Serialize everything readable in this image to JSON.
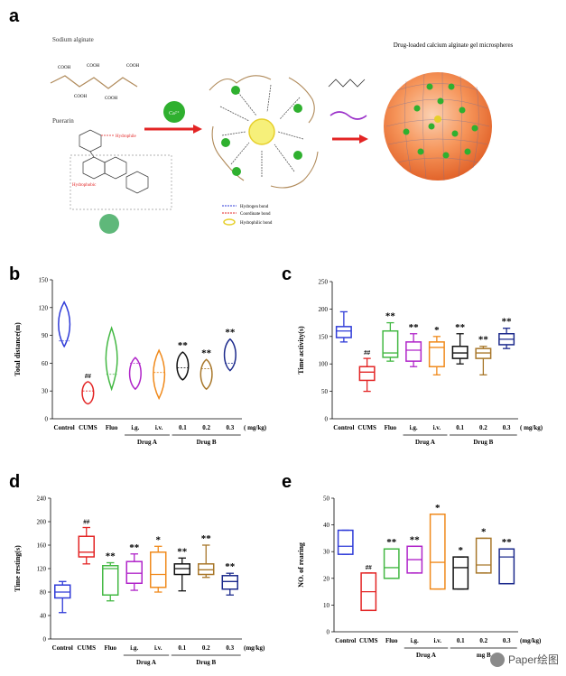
{
  "panel_a": {
    "letter": "a",
    "sodium_alginate": "Sodium alginate",
    "puerarin": "Puerarin",
    "hydrophile": "Hydrophile",
    "hydrophobic": "Hydrophobic",
    "calcium": "Ca²⁺",
    "cooh": "COOH",
    "microspheres_title": "Drug-loaded calcium alginate gel microspheres",
    "legend": [
      "Hydrogen bond",
      "Coordinate bond",
      "Hydrophilic bond"
    ]
  },
  "chart_data": [
    {
      "letter": "b",
      "type": "violin",
      "ylabel": "Total distance(m)",
      "ylim": [
        0,
        150
      ],
      "yticks": [
        0,
        30,
        60,
        90,
        120,
        150
      ],
      "categories": [
        "Control",
        "CUMS",
        "Fluo",
        "i.g.",
        "i.v.",
        "0.1",
        "0.2",
        "0.3"
      ],
      "colors": [
        "#2f3bd8",
        "#e32424",
        "#43b843",
        "#b024c9",
        "#f08a1c",
        "#111111",
        "#a8772a",
        "#1c2a8c"
      ],
      "series": [
        {
          "name": "Control",
          "min": 78,
          "max": 126,
          "median": 84,
          "sig": ""
        },
        {
          "name": "CUMS",
          "min": 16,
          "max": 40,
          "median": 30,
          "sig": "##"
        },
        {
          "name": "Fluo",
          "min": 32,
          "max": 98,
          "median": 48,
          "sig": ""
        },
        {
          "name": "i.g.",
          "min": 32,
          "max": 66,
          "median": 60,
          "sig": ""
        },
        {
          "name": "i.v.",
          "min": 22,
          "max": 74,
          "median": 50,
          "sig": ""
        },
        {
          "name": "0.1",
          "min": 42,
          "max": 72,
          "median": 55,
          "sig": "**"
        },
        {
          "name": "0.2",
          "min": 32,
          "max": 64,
          "median": 54,
          "sig": "**"
        },
        {
          "name": "0.3",
          "min": 52,
          "max": 86,
          "median": 60,
          "sig": "**"
        }
      ],
      "group_labels": {
        "A": "Drug A",
        "B": "Drug B"
      },
      "unit": "( mg/kg)"
    },
    {
      "letter": "c",
      "type": "box",
      "ylabel": "Time activity(s)",
      "ylim": [
        0,
        250
      ],
      "yticks": [
        0,
        50,
        100,
        150,
        200,
        250
      ],
      "categories": [
        "Control",
        "CUMS",
        "Fluo",
        "i.g.",
        "i.v.",
        "0.1",
        "0.2",
        "0.3"
      ],
      "colors": [
        "#2f3bd8",
        "#e32424",
        "#43b843",
        "#b024c9",
        "#f08a1c",
        "#111111",
        "#a8772a",
        "#1c2a8c"
      ],
      "series": [
        {
          "name": "Control",
          "wmin": 140,
          "q1": 148,
          "median": 160,
          "q3": 168,
          "wmax": 195,
          "sig": ""
        },
        {
          "name": "CUMS",
          "wmin": 50,
          "q1": 70,
          "median": 85,
          "q3": 95,
          "wmax": 110,
          "sig": "##"
        },
        {
          "name": "Fluo",
          "wmin": 105,
          "q1": 112,
          "median": 120,
          "q3": 160,
          "wmax": 175,
          "sig": "**"
        },
        {
          "name": "i.g.",
          "wmin": 95,
          "q1": 105,
          "median": 125,
          "q3": 140,
          "wmax": 155,
          "sig": "**"
        },
        {
          "name": "i.v.",
          "wmin": 80,
          "q1": 95,
          "median": 130,
          "q3": 140,
          "wmax": 150,
          "sig": "*"
        },
        {
          "name": "0.1",
          "wmin": 100,
          "q1": 110,
          "median": 120,
          "q3": 132,
          "wmax": 155,
          "sig": "**"
        },
        {
          "name": "0.2",
          "wmin": 80,
          "q1": 110,
          "median": 120,
          "q3": 128,
          "wmax": 132,
          "sig": "**"
        },
        {
          "name": "0.3",
          "wmin": 128,
          "q1": 135,
          "median": 145,
          "q3": 155,
          "wmax": 165,
          "sig": "**"
        }
      ],
      "group_labels": {
        "A": "Drug A",
        "B": "Drug B"
      },
      "unit": "( mg/kg)"
    },
    {
      "letter": "d",
      "type": "box",
      "ylabel": "Time resting(s)",
      "ylim": [
        0,
        240
      ],
      "yticks": [
        0,
        40,
        80,
        120,
        160,
        200,
        240
      ],
      "categories": [
        "Control",
        "CUMS",
        "Fluo",
        "i.g.",
        "i.v.",
        "0.1",
        "0.2",
        "0.3"
      ],
      "colors": [
        "#2f3bd8",
        "#e32424",
        "#43b843",
        "#b024c9",
        "#f08a1c",
        "#111111",
        "#a8772a",
        "#1c2a8c"
      ],
      "series": [
        {
          "name": "Control",
          "wmin": 45,
          "q1": 70,
          "median": 80,
          "q3": 92,
          "wmax": 98,
          "sig": ""
        },
        {
          "name": "CUMS",
          "wmin": 128,
          "q1": 140,
          "median": 148,
          "q3": 175,
          "wmax": 190,
          "sig": "##"
        },
        {
          "name": "Fluo",
          "wmin": 65,
          "q1": 75,
          "median": 120,
          "q3": 125,
          "wmax": 130,
          "sig": "**"
        },
        {
          "name": "i.g.",
          "wmin": 83,
          "q1": 95,
          "median": 112,
          "q3": 132,
          "wmax": 145,
          "sig": "**"
        },
        {
          "name": "i.v.",
          "wmin": 80,
          "q1": 88,
          "median": 110,
          "q3": 148,
          "wmax": 158,
          "sig": "*"
        },
        {
          "name": "0.1",
          "wmin": 82,
          "q1": 110,
          "median": 120,
          "q3": 128,
          "wmax": 138,
          "sig": "**"
        },
        {
          "name": "0.2",
          "wmin": 105,
          "q1": 110,
          "median": 118,
          "q3": 128,
          "wmax": 160,
          "sig": "**"
        },
        {
          "name": "0.3",
          "wmin": 75,
          "q1": 85,
          "median": 98,
          "q3": 108,
          "wmax": 112,
          "sig": "**"
        }
      ],
      "group_labels": {
        "A": "Drug A",
        "B": "Drug B"
      },
      "unit": "(mg/kg)"
    },
    {
      "letter": "e",
      "type": "box",
      "ylabel": "NO. of rearing",
      "ylim": [
        0,
        50
      ],
      "yticks": [
        0,
        10,
        20,
        30,
        40,
        50
      ],
      "categories": [
        "Control",
        "CUMS",
        "Fluo",
        "i.g.",
        "i.v.",
        "0.1",
        "0.2",
        "0.3"
      ],
      "colors": [
        "#2f3bd8",
        "#e32424",
        "#43b843",
        "#b024c9",
        "#f08a1c",
        "#111111",
        "#a8772a",
        "#1c2a8c"
      ],
      "series": [
        {
          "name": "Control",
          "wmin": 29,
          "q1": 29,
          "median": 32,
          "q3": 38,
          "wmax": 38,
          "sig": ""
        },
        {
          "name": "CUMS",
          "wmin": 8,
          "q1": 8,
          "median": 15,
          "q3": 22,
          "wmax": 22,
          "sig": "##"
        },
        {
          "name": "Fluo",
          "wmin": 20,
          "q1": 20,
          "median": 24,
          "q3": 31,
          "wmax": 31,
          "sig": "**"
        },
        {
          "name": "i.g.",
          "wmin": 22,
          "q1": 22,
          "median": 27,
          "q3": 32,
          "wmax": 32,
          "sig": "**"
        },
        {
          "name": "i.v.",
          "wmin": 16,
          "q1": 16,
          "median": 26,
          "q3": 44,
          "wmax": 44,
          "sig": "*"
        },
        {
          "name": "0.1",
          "wmin": 16,
          "q1": 16,
          "median": 24,
          "q3": 28,
          "wmax": 28,
          "sig": "*"
        },
        {
          "name": "0.2",
          "wmin": 22,
          "q1": 22,
          "median": 25,
          "q3": 35,
          "wmax": 35,
          "sig": "*"
        },
        {
          "name": "0.3",
          "wmin": 18,
          "q1": 18,
          "median": 28,
          "q3": 31,
          "wmax": 31,
          "sig": "**"
        }
      ],
      "group_labels": {
        "A": "Drug A",
        "B": "mg B"
      },
      "unit": "(mg/kg)"
    }
  ],
  "watermark": "Paper绘图"
}
